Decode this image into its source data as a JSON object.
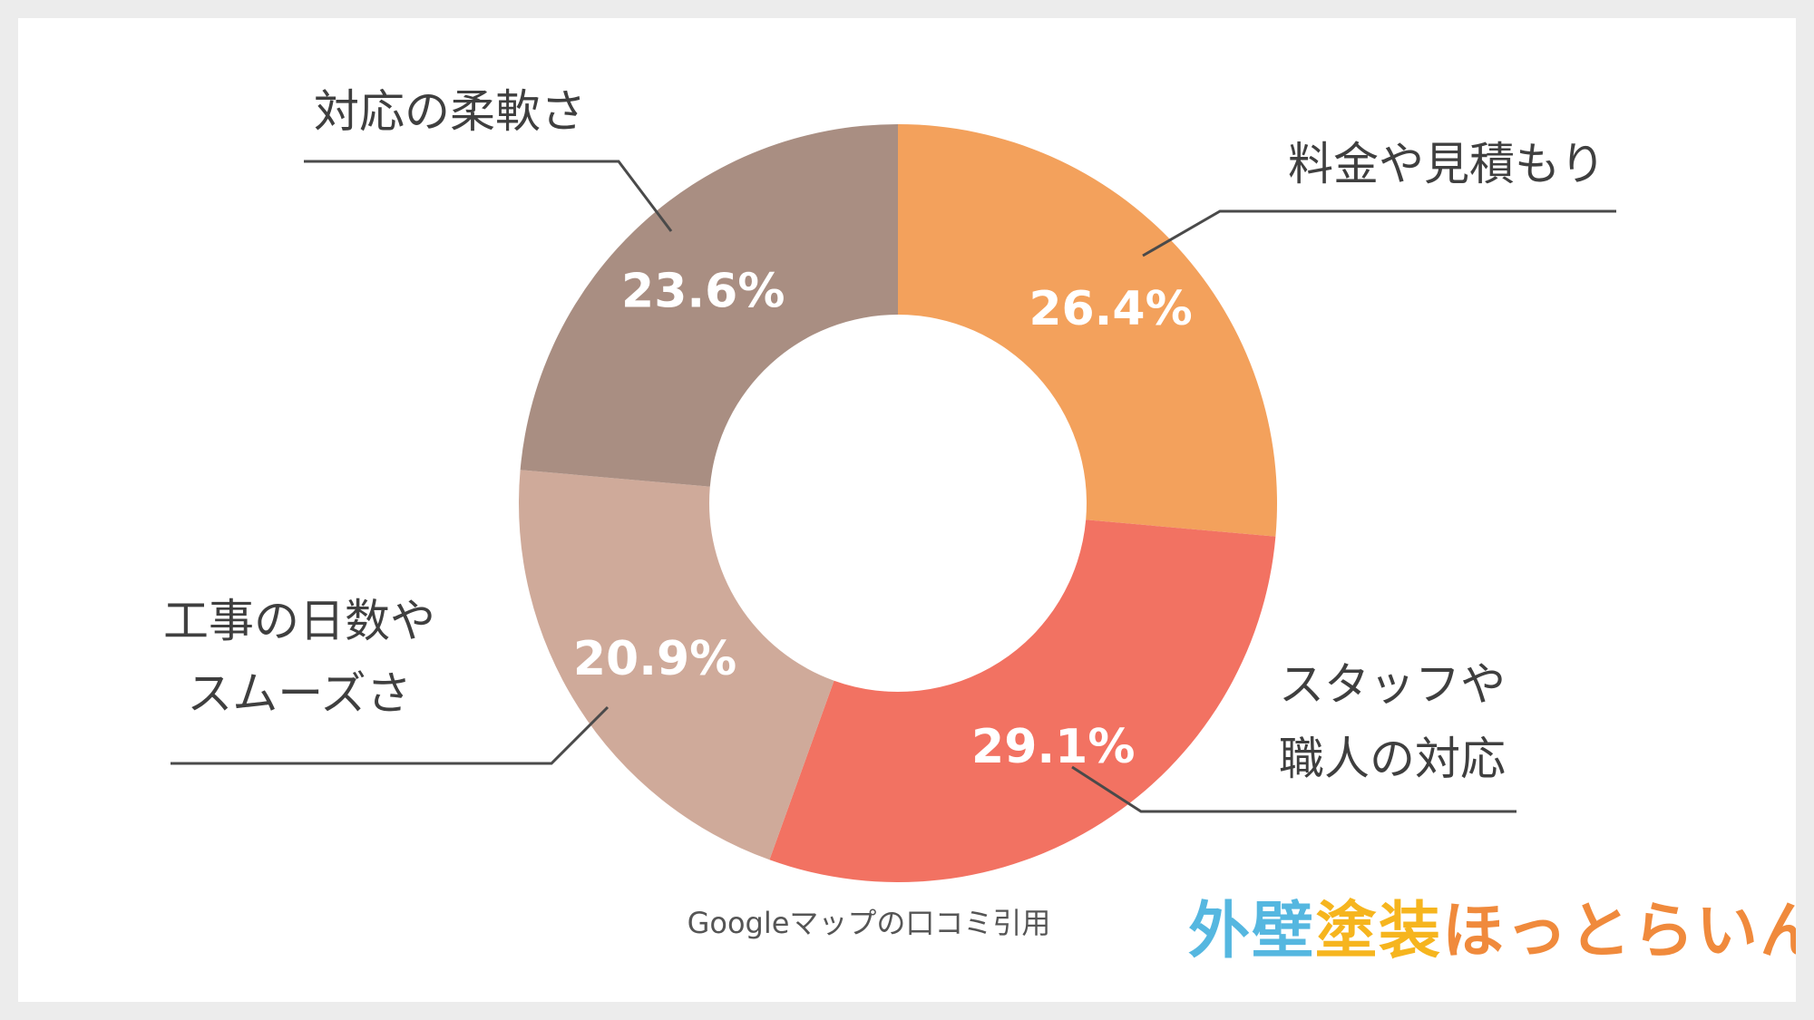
{
  "chart_data": {
    "type": "pie",
    "donut": true,
    "categories": [
      "料金や見積もり",
      "スタッフや職人の対応",
      "工事の日数やスムーズさ",
      "対応の柔軟さ"
    ],
    "category_lines": [
      [
        "料金や見積もり"
      ],
      [
        "スタッフや",
        "職人の対応"
      ],
      [
        "工事の日数や",
        "スムーズさ"
      ],
      [
        "対応の柔軟さ"
      ]
    ],
    "values": [
      26.4,
      29.1,
      20.9,
      23.6
    ],
    "value_labels": [
      "26.4%",
      "29.1%",
      "20.9%",
      "23.6%"
    ],
    "colors": [
      "#f3a15c",
      "#f27262",
      "#cfaa9a",
      "#a98e82"
    ],
    "start": "12 o'clock",
    "direction": "clockwise",
    "legend": "none"
  },
  "source_note": "Googleマップの口コミ引用",
  "brand": {
    "segments": [
      {
        "text": "外壁",
        "color": "#55b7e0"
      },
      {
        "text": "塗装",
        "color": "#f6b51e"
      },
      {
        "text": "ほっとらいん",
        "color": "#f08a3c"
      }
    ]
  }
}
